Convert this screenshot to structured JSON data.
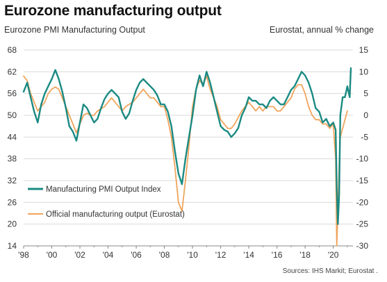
{
  "title": "Eurozone manufacturing output",
  "subtitle_left": "Eurozone PMI Manufacturing Output",
  "subtitle_right": "Eurostat, annual % change",
  "source": "Sources: IHS Markit; Eurostat .",
  "colors": {
    "pmi": "#1a8a82",
    "eurostat": "#f0a45c",
    "grid": "#d9d9d9",
    "axis": "#888888",
    "text": "#333333"
  },
  "chart_data": {
    "type": "line",
    "xlim": [
      1998,
      2021.4
    ],
    "x_ticks": [
      1998,
      2000,
      2002,
      2004,
      2006,
      2008,
      2010,
      2012,
      2014,
      2016,
      2018,
      2020
    ],
    "x_tick_labels": [
      "'98",
      "'00",
      "'02",
      "'04",
      "'06",
      "'08",
      "'10",
      "'12",
      "'14",
      "'16",
      "'18",
      "'20"
    ],
    "y_left": {
      "lim": [
        14,
        68
      ],
      "ticks": [
        14,
        20,
        26,
        32,
        38,
        44,
        50,
        56,
        62,
        68
      ]
    },
    "y_right": {
      "lim": [
        -30,
        15
      ],
      "ticks": [
        -30,
        -25,
        -20,
        -15,
        -10,
        -5,
        0,
        5,
        10,
        15
      ]
    },
    "series": [
      {
        "name": "Manufacturing PMI Output Index",
        "axis": "left",
        "x": [
          1998.0,
          1998.25,
          1998.5,
          1998.75,
          1999.0,
          1999.25,
          1999.5,
          1999.75,
          2000.0,
          2000.25,
          2000.5,
          2000.75,
          2001.0,
          2001.25,
          2001.5,
          2001.75,
          2002.0,
          2002.25,
          2002.5,
          2002.75,
          2003.0,
          2003.25,
          2003.5,
          2003.75,
          2004.0,
          2004.25,
          2004.5,
          2004.75,
          2005.0,
          2005.25,
          2005.5,
          2005.75,
          2006.0,
          2006.25,
          2006.5,
          2006.75,
          2007.0,
          2007.25,
          2007.5,
          2007.75,
          2008.0,
          2008.25,
          2008.5,
          2008.75,
          2009.0,
          2009.25,
          2009.5,
          2009.75,
          2010.0,
          2010.25,
          2010.5,
          2010.75,
          2011.0,
          2011.25,
          2011.5,
          2011.75,
          2012.0,
          2012.25,
          2012.5,
          2012.75,
          2013.0,
          2013.25,
          2013.5,
          2013.75,
          2014.0,
          2014.25,
          2014.5,
          2014.75,
          2015.0,
          2015.25,
          2015.5,
          2015.75,
          2016.0,
          2016.25,
          2016.5,
          2016.75,
          2017.0,
          2017.25,
          2017.5,
          2017.75,
          2018.0,
          2018.25,
          2018.5,
          2018.75,
          2019.0,
          2019.25,
          2019.5,
          2019.75,
          2020.0,
          2020.17,
          2020.25,
          2020.33,
          2020.42,
          2020.5,
          2020.67,
          2020.83,
          2021.0,
          2021.17,
          2021.25
        ],
        "values": [
          56.5,
          59,
          55,
          51,
          48,
          53,
          56,
          58,
          60,
          62.5,
          60,
          56.5,
          52,
          47,
          45.5,
          43,
          48,
          53,
          52,
          50,
          48,
          49,
          52,
          54.5,
          56,
          57,
          56,
          55,
          51,
          49,
          50.5,
          54,
          57,
          59,
          60,
          59,
          58,
          57,
          55.5,
          53,
          53,
          51,
          47,
          40,
          34,
          31,
          38,
          44,
          50,
          57,
          61,
          58,
          62,
          59,
          55,
          51,
          47,
          46,
          45.5,
          44,
          45,
          46.5,
          50,
          52,
          55,
          54,
          54,
          53,
          53,
          52,
          54,
          55,
          54,
          53,
          53,
          55,
          57,
          58,
          60,
          62,
          61,
          59,
          56,
          52,
          51,
          48,
          49,
          47,
          48,
          46,
          30,
          20,
          28,
          50,
          55,
          55,
          58,
          55,
          63
        ]
      },
      {
        "name": "Official manufacturing output (Eurostat)",
        "axis": "right",
        "x": [
          1998.0,
          1998.25,
          1998.5,
          1998.75,
          1999.0,
          1999.25,
          1999.5,
          1999.75,
          2000.0,
          2000.25,
          2000.5,
          2000.75,
          2001.0,
          2001.25,
          2001.5,
          2001.75,
          2002.0,
          2002.25,
          2002.5,
          2002.75,
          2003.0,
          2003.25,
          2003.5,
          2003.75,
          2004.0,
          2004.25,
          2004.5,
          2004.75,
          2005.0,
          2005.25,
          2005.5,
          2005.75,
          2006.0,
          2006.25,
          2006.5,
          2006.75,
          2007.0,
          2007.25,
          2007.5,
          2007.75,
          2008.0,
          2008.25,
          2008.5,
          2008.75,
          2009.0,
          2009.25,
          2009.5,
          2009.75,
          2010.0,
          2010.25,
          2010.5,
          2010.75,
          2011.0,
          2011.25,
          2011.5,
          2011.75,
          2012.0,
          2012.25,
          2012.5,
          2012.75,
          2013.0,
          2013.25,
          2013.5,
          2013.75,
          2014.0,
          2014.25,
          2014.5,
          2014.75,
          2015.0,
          2015.25,
          2015.5,
          2015.75,
          2016.0,
          2016.25,
          2016.5,
          2016.75,
          2017.0,
          2017.25,
          2017.5,
          2017.75,
          2018.0,
          2018.25,
          2018.5,
          2018.75,
          2019.0,
          2019.25,
          2019.5,
          2019.75,
          2020.0,
          2020.17,
          2020.25,
          2020.33,
          2020.42,
          2020.5,
          2020.67,
          2020.83,
          2021.0
        ],
        "values": [
          9,
          8,
          5,
          3,
          1,
          2,
          3,
          5,
          6,
          6.5,
          6,
          4,
          2,
          0,
          -2,
          -4,
          -2,
          0,
          0.5,
          0,
          0,
          1,
          1.5,
          2,
          3,
          4,
          3,
          2,
          1,
          2,
          2.5,
          3,
          4,
          5,
          6,
          5,
          4,
          4,
          3,
          2,
          2,
          -1,
          -5,
          -12,
          -20,
          -22,
          -15,
          -7,
          2,
          6,
          8,
          7,
          9,
          6,
          4,
          2,
          -1,
          -2,
          -3,
          -3,
          -2,
          -0.5,
          1,
          2,
          3,
          2,
          1,
          2,
          1,
          2,
          2,
          2,
          1,
          1,
          2,
          3,
          4,
          6,
          7,
          7,
          5,
          2,
          0,
          -1,
          -1,
          -2,
          -2,
          -3,
          -2,
          -10,
          -30,
          -22,
          -12,
          -5,
          -3,
          -1,
          1
        ]
      }
    ]
  },
  "legend": {
    "pmi_label": "Manufacturing PMI Output Index",
    "eurostat_label": "Official manufacturing output (Eurostat)"
  }
}
